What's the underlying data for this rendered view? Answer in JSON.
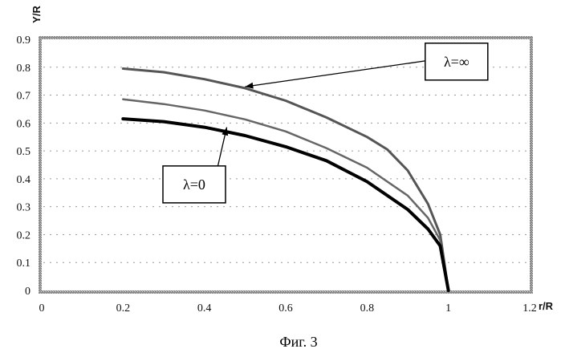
{
  "chart_data": {
    "type": "line",
    "xlabel": "r/R",
    "ylabel": "Y/R",
    "xlim": [
      0,
      1.2
    ],
    "ylim": [
      0,
      0.9
    ],
    "x_ticks": [
      "0",
      "0.2",
      "0.4",
      "0.6",
      "0.8",
      "1",
      "1.2"
    ],
    "y_ticks": [
      "0",
      "0.1",
      "0.2",
      "0.3",
      "0.4",
      "0.5",
      "0.6",
      "0.7",
      "0.8",
      "0.9"
    ],
    "grid": "horizontal dotted",
    "series": [
      {
        "color": "#555555",
        "x": [
          0.2,
          0.3,
          0.4,
          0.5,
          0.6,
          0.7,
          0.8,
          0.85,
          0.9,
          0.95,
          0.98,
          1.0
        ],
        "y": [
          0.795,
          0.782,
          0.757,
          0.725,
          0.68,
          0.62,
          0.55,
          0.505,
          0.43,
          0.31,
          0.2,
          0.0
        ]
      },
      {
        "color": "#666666",
        "x": [
          0.2,
          0.3,
          0.4,
          0.5,
          0.6,
          0.7,
          0.8,
          0.9,
          0.95,
          0.98,
          1.0
        ],
        "y": [
          0.685,
          0.668,
          0.645,
          0.613,
          0.57,
          0.51,
          0.44,
          0.34,
          0.26,
          0.18,
          0.0
        ]
      },
      {
        "color": "#000000",
        "x": [
          0.2,
          0.3,
          0.4,
          0.5,
          0.6,
          0.7,
          0.8,
          0.9,
          0.95,
          0.98,
          1.0
        ],
        "y": [
          0.615,
          0.605,
          0.585,
          0.555,
          0.515,
          0.465,
          0.39,
          0.29,
          0.22,
          0.16,
          0.0
        ]
      }
    ],
    "annotations": [
      {
        "text": "λ=∞",
        "point": [
          0.5,
          0.73
        ],
        "box_at": [
          1.02,
          0.82
        ]
      },
      {
        "text": "λ=0",
        "point": [
          0.455,
          0.585
        ],
        "box_at": [
          0.375,
          0.38
        ]
      }
    ]
  },
  "caption": "Фиг. 3"
}
